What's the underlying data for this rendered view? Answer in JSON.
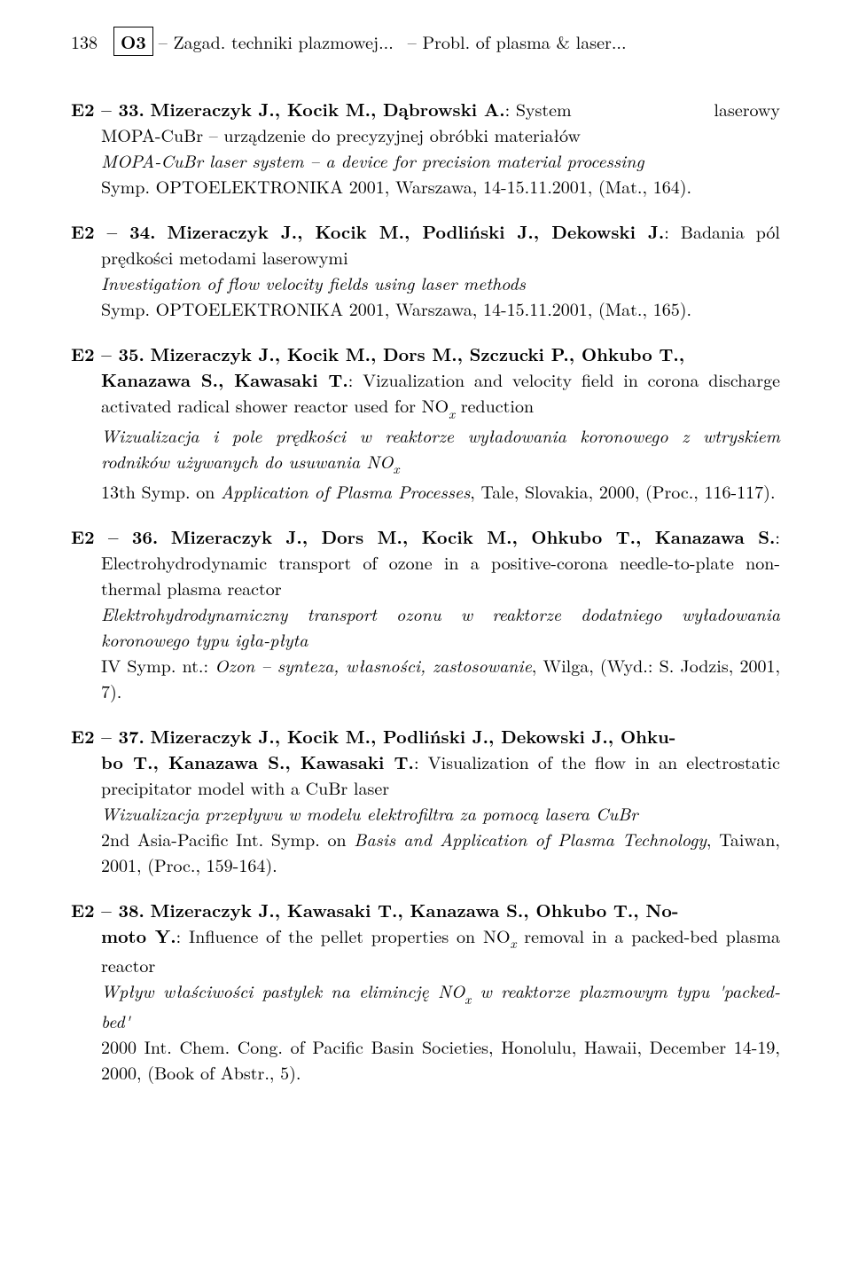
{
  "header": {
    "page_number": "138",
    "section_code": "O3",
    "title_left": "– Zagad. techniki plazmowej...",
    "title_right": "– Probl. of plasma & laser..."
  },
  "entries": [
    {
      "id": "E2 – 33.",
      "authors": "Mizeraczyk J., Kocik M., Dąbrowski A.",
      "title_en_pre": ": System",
      "title_en_right": "laserowy",
      "line2": "MOPA-CuBr – urządzenie do precyzyjnej obróbki materiałów",
      "title_it": "MOPA-CuBr laser system – a device for precision material processing",
      "venue": "Symp. OPTOELEKTRONIKA 2001, Warszawa, 14-15.11.2001, (Mat., 164)."
    },
    {
      "id": "E2 – 34.",
      "authors": "Mizeraczyk J., Kocik M., Podliński J., Dekowski J.",
      "title_pl": ": Badania pól prędkości metodami laserowymi",
      "title_it": "Investigation of flow velocity fields using laser methods",
      "venue": "Symp. OPTOELEKTRONIKA 2001, Warszawa, 14-15.11.2001, (Mat., 165)."
    },
    {
      "id": "E2 – 35.",
      "authors1": "Mizeraczyk J., Kocik M., Dors M., Szczucki P., Ohkubo T.,",
      "authors2": "Kanazawa S., Kawasaki T.",
      "title_en": ": Vizualization and velocity field in corona discharge activated radical shower reactor used for NO",
      "title_en_tail": " reduction",
      "title_it_pre": "Wizualizacja i pole prędkości w reaktorze wyładowania koronowego z wtryskiem rodników używanych do usuwania NO",
      "venue_a": "13th Symp. on ",
      "venue_it": "Application of Plasma Processes",
      "venue_b": ", Tale, Slovakia, 2000, (Proc., 116-117)."
    },
    {
      "id": "E2 – 36.",
      "authors": "Mizeraczyk J., Dors M., Kocik M., Ohkubo T., Kanazawa S.",
      "title_en": ": Electrohydrodynamic transport of ozone in a positive-corona needle-to-plate non-thermal plasma reactor",
      "title_it": "Elektrohydrodynamiczny transport ozonu w reaktorze dodatniego wyładowania koronowego typu igła-płyta",
      "venue_a": "IV Symp. nt.: ",
      "venue_it": "Ozon – synteza, własności, zastosowanie",
      "venue_b": ", Wilga, (Wyd.: S. Jodzis, 2001, 7)."
    },
    {
      "id": "E2 – 37.",
      "authors1": "Mizeraczyk J., Kocik M., Podliński J., Dekowski J., Ohku-",
      "authors2": "bo T., Kanazawa S., Kawasaki T.",
      "title_en": ": Visualization of the flow in an electrostatic precipitator model with a CuBr laser",
      "title_it": "Wizualizacja przepływu w modelu elektrofiltra za pomocą lasera CuBr",
      "venue_a": "2nd Asia-Pacific Int. Symp. on ",
      "venue_it": "Basis and Application of Plasma Technology",
      "venue_b": ", Taiwan, 2001, (Proc., 159-164)."
    },
    {
      "id": "E2 – 38.",
      "authors1": "Mizeraczyk J., Kawasaki T., Kanazawa S., Ohkubo T., No-",
      "authors2": "moto Y.",
      "title_en_a": ": Influence of the pellet properties on NO",
      "title_en_b": " removal in a packed-bed plasma reactor",
      "title_it_a": "Wpływ właściwości pastylek na elimincję NO",
      "title_it_b": " w reaktorze plazmowym typu 'packed-bed'",
      "venue": "2000 Int. Chem. Cong. of Pacific Basin Societies, Honolulu, Hawaii, December 14-19, 2000, (Book of Abstr., 5)."
    }
  ]
}
